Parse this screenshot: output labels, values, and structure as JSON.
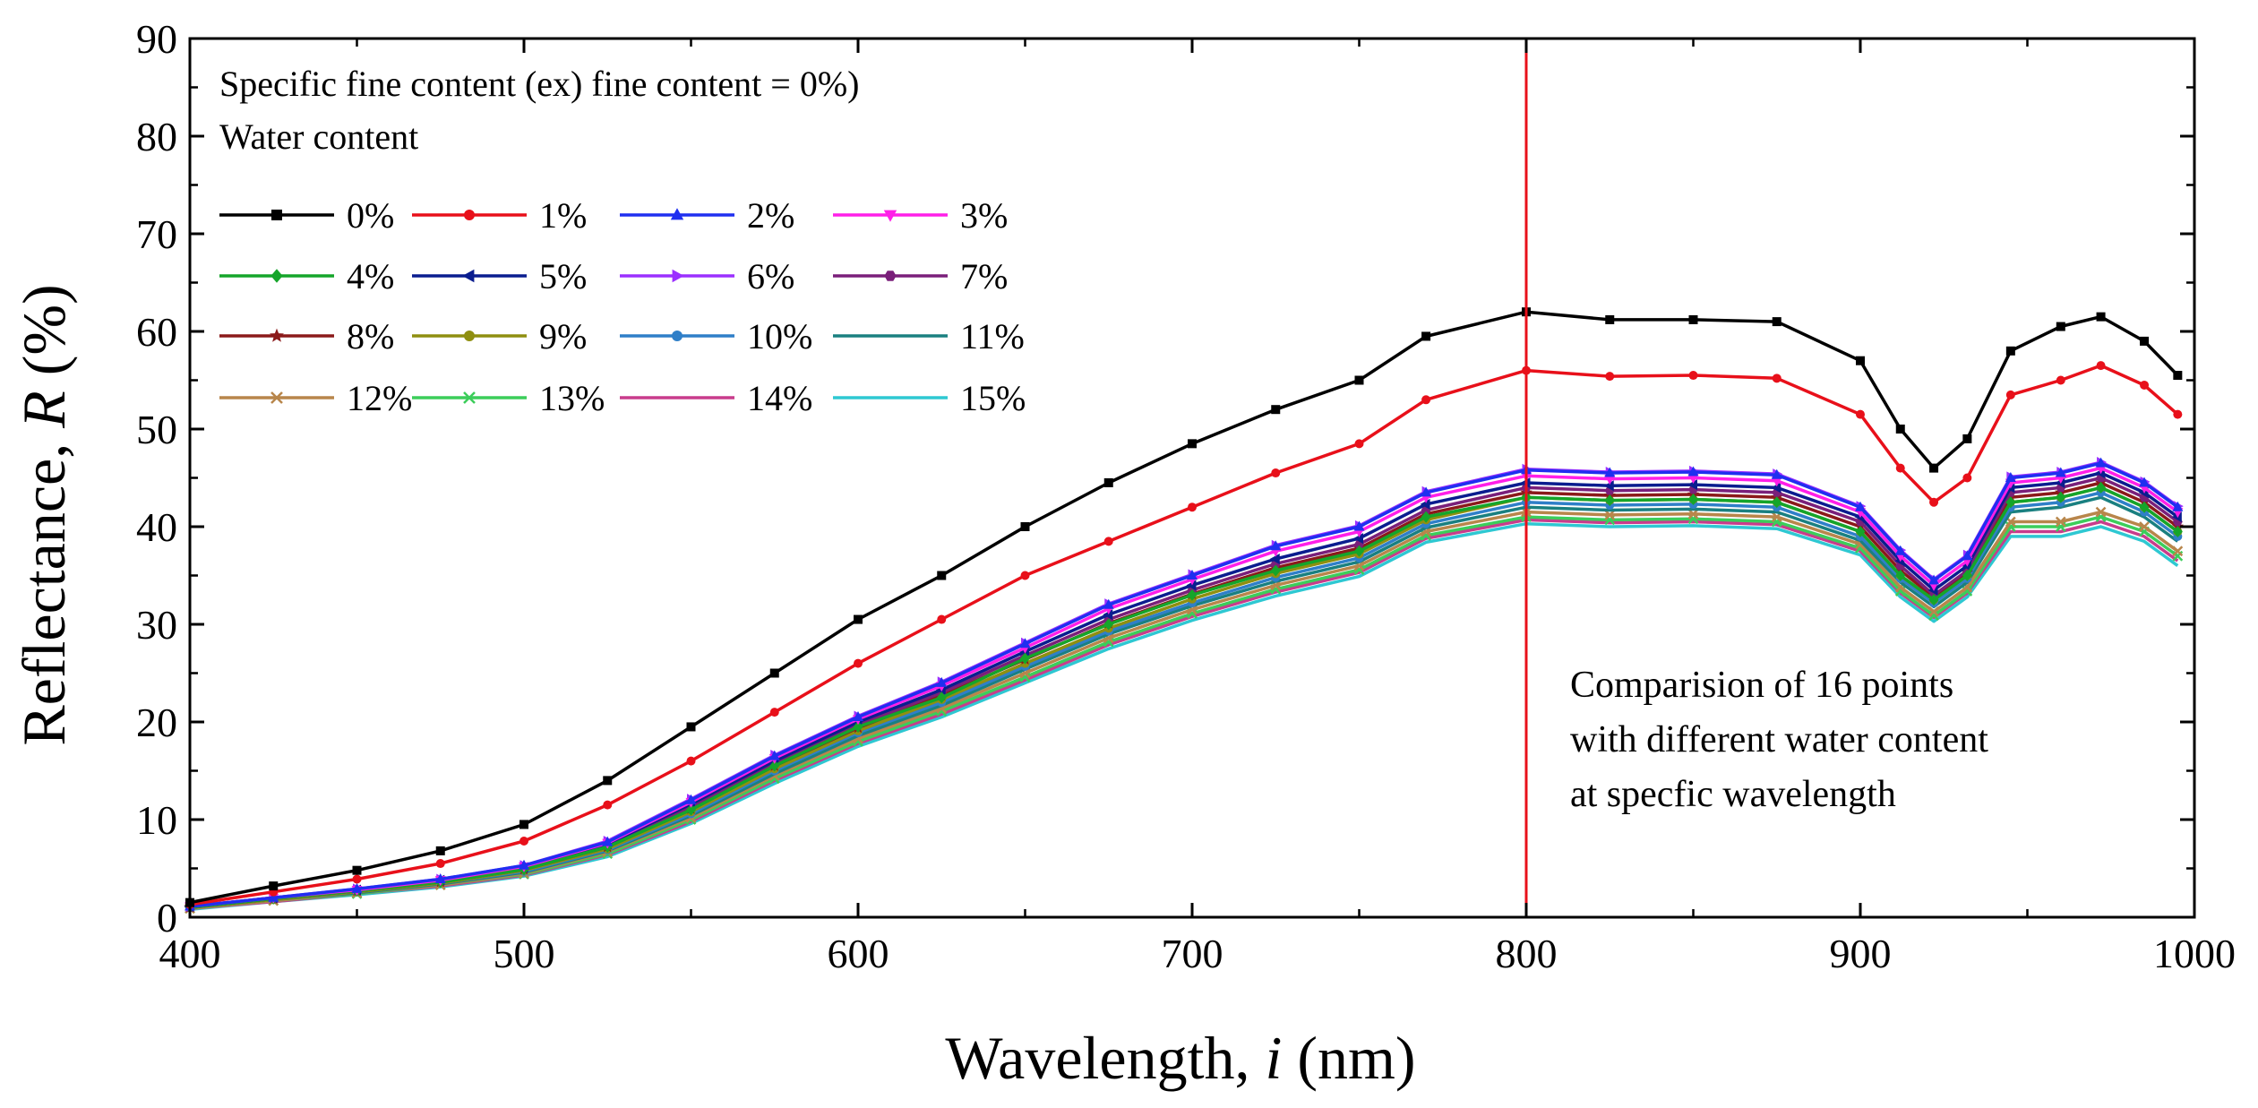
{
  "chart_data": {
    "type": "line",
    "xlabel": {
      "prefix": "Wavelength, ",
      "italic": "i",
      "suffix": " (nm)"
    },
    "ylabel": {
      "prefix": "Reflectance, ",
      "italic": "R",
      "suffix": " (%)"
    },
    "xlim": [
      400,
      1000
    ],
    "ylim": [
      0,
      90
    ],
    "x_ticks": [
      400,
      500,
      600,
      700,
      800,
      900,
      1000
    ],
    "y_ticks": [
      0,
      10,
      20,
      30,
      40,
      50,
      60,
      70,
      80,
      90
    ],
    "grid": false,
    "legend_title_1": "Specific fine content (ex) fine content = 0%)",
    "legend_title_2": "Water content",
    "marker_line": {
      "x": 800,
      "color": "#e8101a"
    },
    "annotation_lines": [
      "Comparision of 16 points",
      "with different water content",
      "at specfic wavelength"
    ],
    "x": [
      400,
      425,
      450,
      475,
      500,
      525,
      550,
      575,
      600,
      625,
      650,
      675,
      700,
      725,
      750,
      770,
      800,
      825,
      850,
      875,
      900,
      912,
      922,
      932,
      945,
      960,
      972,
      985,
      995
    ],
    "series": [
      {
        "name": "0%",
        "color": "#000000",
        "marker": "square",
        "values": [
          1.5,
          3.2,
          4.8,
          6.8,
          9.5,
          14,
          19.5,
          25,
          30.5,
          35,
          40,
          44.5,
          48.5,
          52,
          55,
          59.5,
          62,
          61.2,
          61.2,
          61,
          57,
          50,
          46,
          49,
          58,
          60.5,
          61.5,
          59,
          55.5
        ]
      },
      {
        "name": "1%",
        "color": "#e8101a",
        "marker": "circle",
        "values": [
          1.3,
          2.6,
          3.9,
          5.5,
          7.8,
          11.5,
          16,
          21,
          26,
          30.5,
          35,
          38.5,
          42,
          45.5,
          48.5,
          53,
          56,
          55.4,
          55.5,
          55.2,
          51.5,
          46,
          42.5,
          45,
          53.5,
          55,
          56.5,
          54.5,
          51.5
        ]
      },
      {
        "name": "2%",
        "color": "#1f2ff0",
        "marker": "triangle",
        "values": [
          1.1,
          2.0,
          2.9,
          3.9,
          5.3,
          7.7,
          12,
          16.5,
          20.5,
          24,
          28,
          32,
          35,
          38,
          40,
          43.5,
          45.8,
          45.5,
          45.6,
          45.3,
          42,
          37.5,
          34.5,
          37,
          45,
          45.5,
          46.5,
          44.5,
          42
        ]
      },
      {
        "name": "3%",
        "color": "#ff1fe8",
        "marker": "tri-down",
        "values": [
          1.1,
          2.0,
          2.8,
          3.8,
          5.2,
          7.6,
          11.8,
          16.3,
          20.3,
          23.7,
          27.6,
          31.6,
          34.6,
          37.5,
          39.5,
          43,
          45.2,
          44.9,
          45,
          44.7,
          41.5,
          37,
          34,
          36.5,
          44.5,
          45,
          46,
          44,
          41.5
        ]
      },
      {
        "name": "4%",
        "color": "#15a52a",
        "marker": "diamond",
        "values": [
          1.0,
          1.9,
          2.7,
          3.6,
          4.9,
          7.2,
          11,
          15.5,
          19.5,
          22.5,
          26.5,
          30,
          33,
          35.5,
          37.5,
          41,
          43,
          42.7,
          42.8,
          42.5,
          39.5,
          35,
          32.5,
          35,
          42.5,
          43,
          44,
          42,
          39.5
        ]
      },
      {
        "name": "5%",
        "color": "#0a1d8f",
        "marker": "tri-left",
        "values": [
          1.1,
          2.0,
          2.8,
          3.8,
          5.1,
          7.5,
          11.6,
          16,
          20,
          23.3,
          27.2,
          31,
          34,
          36.7,
          38.8,
          42.3,
          44.5,
          44.2,
          44.3,
          44,
          41,
          36.5,
          33.5,
          36,
          44,
          44.5,
          45.5,
          43.5,
          41
        ]
      },
      {
        "name": "6%",
        "color": "#9b30ff",
        "marker": "tri-right",
        "values": [
          1.1,
          2.0,
          2.9,
          3.9,
          5.3,
          7.8,
          12.1,
          16.6,
          20.6,
          24.1,
          28.1,
          32.1,
          35.1,
          38.1,
          40.1,
          43.6,
          45.9,
          45.6,
          45.7,
          45.4,
          42.1,
          37.6,
          34.6,
          37.1,
          45.1,
          45.6,
          46.6,
          44.6,
          42.1
        ]
      },
      {
        "name": "7%",
        "color": "#7a1f7a",
        "marker": "hexagon",
        "values": [
          1.0,
          1.9,
          2.7,
          3.7,
          5.0,
          7.3,
          11.3,
          15.7,
          19.7,
          23,
          26.8,
          30.5,
          33.5,
          36.2,
          38.2,
          41.7,
          44,
          43.7,
          43.8,
          43.5,
          40.5,
          36,
          33,
          35.5,
          43.5,
          44,
          45,
          43,
          40.5
        ]
      },
      {
        "name": "8%",
        "color": "#8b1a1a",
        "marker": "star",
        "values": [
          1.0,
          1.9,
          2.7,
          3.6,
          4.9,
          7.2,
          11.1,
          15.5,
          19.4,
          22.7,
          26.4,
          30.1,
          33.1,
          35.8,
          37.8,
          41.3,
          43.5,
          43.2,
          43.3,
          43,
          40,
          35.5,
          32.8,
          35.3,
          43,
          43.5,
          44.5,
          42.5,
          40
        ]
      },
      {
        "name": "9%",
        "color": "#8f8f10",
        "marker": "circle",
        "values": [
          1.0,
          1.8,
          2.6,
          3.5,
          4.8,
          7.0,
          10.8,
          15.2,
          19.1,
          22.3,
          26,
          29.6,
          32.6,
          35.2,
          37.2,
          40.7,
          43,
          42.7,
          42.8,
          42.5,
          39.5,
          35,
          32.5,
          35,
          42.5,
          43,
          44,
          42,
          39.5
        ]
      },
      {
        "name": "10%",
        "color": "#2f7fc8",
        "marker": "circle",
        "values": [
          1.0,
          1.8,
          2.6,
          3.5,
          4.7,
          6.9,
          10.6,
          15,
          18.9,
          22,
          25.7,
          29.3,
          32.2,
          34.8,
          36.8,
          40.3,
          42.5,
          42.2,
          42.3,
          42,
          39,
          34.7,
          32.2,
          34.7,
          42,
          42.5,
          43.5,
          41.5,
          39
        ]
      },
      {
        "name": "11%",
        "color": "#1a8080",
        "marker": "none",
        "values": [
          1.0,
          1.8,
          2.5,
          3.4,
          4.6,
          6.8,
          10.4,
          14.7,
          18.6,
          21.7,
          25.4,
          29,
          31.9,
          34.4,
          36.4,
          39.9,
          42,
          41.7,
          41.8,
          41.5,
          38.6,
          34.3,
          31.8,
          34.3,
          41.5,
          42,
          43,
          41,
          38.5
        ]
      },
      {
        "name": "12%",
        "color": "#b8864b",
        "marker": "cross",
        "values": [
          0.9,
          1.7,
          2.5,
          3.3,
          4.5,
          6.7,
          10.2,
          14.5,
          18.3,
          21.4,
          25,
          28.6,
          31.5,
          34,
          36,
          39.5,
          41.5,
          41.2,
          41.3,
          41,
          38.2,
          33.8,
          31.3,
          33.8,
          40.5,
          40.5,
          41.5,
          40,
          37.5
        ]
      },
      {
        "name": "13%",
        "color": "#3ccd5a",
        "marker": "cross",
        "values": [
          0.9,
          1.7,
          2.4,
          3.3,
          4.4,
          6.5,
          10.0,
          14.2,
          18.0,
          21.1,
          24.6,
          28.2,
          31.1,
          33.6,
          35.6,
          39.1,
          41,
          40.7,
          40.8,
          40.5,
          37.8,
          33.4,
          30.9,
          33.4,
          40,
          40,
          41,
          39.5,
          37
        ]
      },
      {
        "name": "14%",
        "color": "#c83c8c",
        "marker": "none",
        "values": [
          0.9,
          1.6,
          2.4,
          3.2,
          4.3,
          6.4,
          9.8,
          14.0,
          17.8,
          20.8,
          24.3,
          27.9,
          30.8,
          33.3,
          35.3,
          38.8,
          40.7,
          40.4,
          40.5,
          40.2,
          37.5,
          33.2,
          30.7,
          33.2,
          39.5,
          39.5,
          40.5,
          39,
          36.5
        ]
      },
      {
        "name": "15%",
        "color": "#2ec8d2",
        "marker": "none",
        "values": [
          0.8,
          1.6,
          2.3,
          3.1,
          4.2,
          6.2,
          9.6,
          13.7,
          17.5,
          20.5,
          24,
          27.5,
          30.4,
          32.9,
          34.9,
          38.4,
          40.3,
          40,
          40.1,
          39.8,
          37.1,
          32.8,
          30.3,
          32.8,
          39,
          39,
          40,
          38.5,
          36
        ]
      }
    ]
  }
}
